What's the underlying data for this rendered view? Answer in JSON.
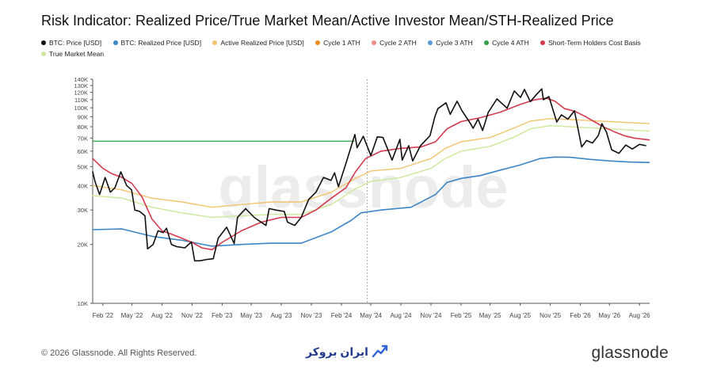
{
  "title": "Risk Indicator: Realized Price/True Market Mean/Active Investor Mean/STH-Realized Price",
  "legend": [
    {
      "label": "BTC: Price [USD]",
      "color": "#111111"
    },
    {
      "label": "BTC: Realized Price [USD]",
      "color": "#3d86c6"
    },
    {
      "label": "Active Realized Price [USD]",
      "color": "#f2c46d"
    },
    {
      "label": "Cycle 1 ATH",
      "color": "#f08c1a"
    },
    {
      "label": "Cycle 2 ATH",
      "color": "#f08c84"
    },
    {
      "label": "Cycle 3 ATH",
      "color": "#5b9bd5"
    },
    {
      "label": "Cycle 4 ATH",
      "color": "#2ea043"
    },
    {
      "label": "Short-Term Holders Cost Basis",
      "color": "#d23b4e"
    },
    {
      "label": "True Market Mean",
      "color": "#cde89b"
    }
  ],
  "watermark": "glassnode",
  "footer": {
    "copyright": "© 2026 Glassnode. All Rights Reserved.",
    "brand": "glassnode",
    "partner": "ایران بروکر"
  },
  "chart_data": {
    "type": "line",
    "y_scale": "log",
    "ylim": [
      10000,
      140000
    ],
    "yticks": [
      "10K",
      "20K",
      "30K",
      "40K",
      "50K",
      "60K",
      "70K",
      "80K",
      "90K",
      "100K",
      "110K",
      "120K",
      "130K",
      "140K"
    ],
    "ytick_values": [
      10000,
      20000,
      30000,
      40000,
      50000,
      60000,
      70000,
      80000,
      90000,
      100000,
      110000,
      120000,
      130000,
      140000
    ],
    "xlim": [
      "2022-01-01",
      "2026-09-01"
    ],
    "xticks": [
      "Feb '22",
      "May '22",
      "Aug '22",
      "Nov '22",
      "Feb '23",
      "May '23",
      "Aug '23",
      "Nov '23",
      "Feb '24",
      "May '24",
      "Aug '24",
      "Nov '24",
      "Feb '25",
      "May '25",
      "Aug '25",
      "Nov '25",
      "Feb '26",
      "May '26",
      "Aug '26"
    ],
    "xtick_dates": [
      "2022-02-01",
      "2022-05-01",
      "2022-08-01",
      "2022-11-01",
      "2023-02-01",
      "2023-05-01",
      "2023-08-01",
      "2023-11-01",
      "2024-02-01",
      "2024-05-01",
      "2024-08-01",
      "2024-11-01",
      "2025-02-01",
      "2025-05-01",
      "2025-08-01",
      "2025-11-01",
      "2026-02-01",
      "2026-05-01",
      "2026-08-01"
    ],
    "halving_marker": "2024-04-20",
    "cycle4_ath": {
      "value": 67500,
      "from": "2022-01-01",
      "to": "2024-03-12"
    },
    "series": [
      {
        "name": "BTC: Price [USD]",
        "color": "#111111",
        "width": 1.6,
        "points": [
          [
            "2022-01-01",
            47000
          ],
          [
            "2022-01-08",
            42000
          ],
          [
            "2022-01-22",
            36000
          ],
          [
            "2022-02-08",
            44000
          ],
          [
            "2022-02-24",
            37000
          ],
          [
            "2022-03-10",
            39000
          ],
          [
            "2022-03-28",
            47000
          ],
          [
            "2022-04-15",
            40000
          ],
          [
            "2022-04-30",
            38000
          ],
          [
            "2022-05-10",
            30000
          ],
          [
            "2022-05-25",
            29500
          ],
          [
            "2022-06-10",
            28000
          ],
          [
            "2022-06-18",
            19000
          ],
          [
            "2022-07-05",
            20000
          ],
          [
            "2022-07-20",
            23500
          ],
          [
            "2022-08-05",
            23000
          ],
          [
            "2022-08-15",
            24200
          ],
          [
            "2022-08-30",
            20000
          ],
          [
            "2022-09-15",
            19500
          ],
          [
            "2022-10-10",
            19200
          ],
          [
            "2022-10-30",
            20600
          ],
          [
            "2022-11-09",
            16500
          ],
          [
            "2022-11-25",
            16500
          ],
          [
            "2022-12-20",
            16800
          ],
          [
            "2023-01-05",
            16900
          ],
          [
            "2023-01-20",
            21500
          ],
          [
            "2023-02-15",
            24500
          ],
          [
            "2023-03-10",
            20200
          ],
          [
            "2023-03-20",
            27500
          ],
          [
            "2023-04-14",
            30500
          ],
          [
            "2023-05-10",
            27500
          ],
          [
            "2023-06-15",
            25000
          ],
          [
            "2023-06-25",
            30500
          ],
          [
            "2023-07-15",
            30000
          ],
          [
            "2023-08-10",
            29500
          ],
          [
            "2023-08-20",
            26000
          ],
          [
            "2023-09-11",
            25000
          ],
          [
            "2023-10-01",
            27500
          ],
          [
            "2023-10-24",
            34000
          ],
          [
            "2023-11-15",
            37000
          ],
          [
            "2023-12-08",
            44000
          ],
          [
            "2023-12-31",
            42500
          ],
          [
            "2024-01-11",
            46500
          ],
          [
            "2024-01-23",
            39500
          ],
          [
            "2024-02-15",
            52000
          ],
          [
            "2024-03-05",
            66000
          ],
          [
            "2024-03-13",
            73000
          ],
          [
            "2024-03-20",
            62500
          ],
          [
            "2024-04-08",
            71500
          ],
          [
            "2024-05-01",
            57000
          ],
          [
            "2024-05-21",
            71000
          ],
          [
            "2024-06-07",
            70500
          ],
          [
            "2024-07-05",
            54000
          ],
          [
            "2024-07-29",
            69000
          ],
          [
            "2024-08-05",
            54000
          ],
          [
            "2024-08-25",
            64000
          ],
          [
            "2024-09-06",
            53500
          ],
          [
            "2024-09-30",
            64000
          ],
          [
            "2024-10-29",
            72000
          ],
          [
            "2024-11-13",
            90000
          ],
          [
            "2024-11-22",
            99000
          ],
          [
            "2024-12-17",
            106000
          ],
          [
            "2024-12-30",
            92500
          ],
          [
            "2025-01-20",
            108000
          ],
          [
            "2025-02-03",
            97000
          ],
          [
            "2025-02-28",
            84000
          ],
          [
            "2025-03-10",
            78500
          ],
          [
            "2025-03-25",
            87500
          ],
          [
            "2025-04-08",
            76500
          ],
          [
            "2025-04-25",
            94500
          ],
          [
            "2025-05-22",
            111000
          ],
          [
            "2025-06-22",
            99500
          ],
          [
            "2025-07-14",
            122000
          ],
          [
            "2025-08-02",
            113000
          ],
          [
            "2025-08-14",
            124000
          ],
          [
            "2025-09-01",
            107500
          ],
          [
            "2025-09-20",
            117000
          ],
          [
            "2025-10-06",
            125000
          ],
          [
            "2025-10-11",
            110000
          ],
          [
            "2025-10-28",
            114000
          ],
          [
            "2025-11-21",
            84500
          ],
          [
            "2025-12-05",
            92000
          ],
          [
            "2025-12-25",
            87500
          ],
          [
            "2026-01-14",
            96500
          ],
          [
            "2026-02-05",
            63000
          ],
          [
            "2026-02-20",
            68000
          ],
          [
            "2026-03-10",
            66000
          ],
          [
            "2026-03-28",
            72000
          ],
          [
            "2026-04-08",
            83000
          ],
          [
            "2026-04-22",
            75000
          ],
          [
            "2026-05-08",
            61000
          ],
          [
            "2026-05-30",
            58500
          ],
          [
            "2026-06-20",
            64500
          ],
          [
            "2026-07-10",
            61500
          ],
          [
            "2026-08-01",
            65000
          ],
          [
            "2026-08-20",
            64000
          ]
        ]
      },
      {
        "name": "BTC: Realized Price [USD]",
        "color": "#3d86c6",
        "width": 1.6,
        "points": [
          [
            "2022-01-01",
            23800
          ],
          [
            "2022-04-01",
            24000
          ],
          [
            "2022-07-01",
            22000
          ],
          [
            "2022-10-01",
            21000
          ],
          [
            "2023-01-01",
            19600
          ],
          [
            "2023-04-01",
            20000
          ],
          [
            "2023-07-01",
            20300
          ],
          [
            "2023-10-01",
            20300
          ],
          [
            "2024-01-01",
            23200
          ],
          [
            "2024-03-01",
            26500
          ],
          [
            "2024-04-01",
            29000
          ],
          [
            "2024-06-01",
            30000
          ],
          [
            "2024-09-01",
            31000
          ],
          [
            "2024-11-15",
            36000
          ],
          [
            "2024-12-20",
            41500
          ],
          [
            "2025-02-01",
            43500
          ],
          [
            "2025-04-01",
            45000
          ],
          [
            "2025-06-01",
            48000
          ],
          [
            "2025-08-01",
            51000
          ],
          [
            "2025-10-01",
            55000
          ],
          [
            "2025-11-15",
            56000
          ],
          [
            "2026-01-01",
            55800
          ],
          [
            "2026-03-01",
            54500
          ],
          [
            "2026-05-01",
            53500
          ],
          [
            "2026-07-01",
            52800
          ],
          [
            "2026-08-31",
            52500
          ]
        ]
      },
      {
        "name": "Active Realized Price [USD]",
        "color": "#f2c46d",
        "width": 1.4,
        "points": [
          [
            "2022-01-01",
            40000
          ],
          [
            "2022-04-01",
            38000
          ],
          [
            "2022-07-01",
            34500
          ],
          [
            "2022-10-01",
            33000
          ],
          [
            "2023-01-01",
            31000
          ],
          [
            "2023-04-01",
            32000
          ],
          [
            "2023-07-01",
            33000
          ],
          [
            "2023-10-01",
            33000
          ],
          [
            "2024-01-01",
            37000
          ],
          [
            "2024-03-15",
            43500
          ],
          [
            "2024-05-01",
            47500
          ],
          [
            "2024-08-01",
            49000
          ],
          [
            "2024-11-01",
            55000
          ],
          [
            "2024-12-15",
            62000
          ],
          [
            "2025-02-01",
            67000
          ],
          [
            "2025-05-01",
            70500
          ],
          [
            "2025-07-15",
            79000
          ],
          [
            "2025-09-01",
            85500
          ],
          [
            "2025-11-01",
            88000
          ],
          [
            "2026-01-01",
            87000
          ],
          [
            "2026-03-01",
            86000
          ],
          [
            "2026-05-01",
            85000
          ],
          [
            "2026-07-01",
            84000
          ],
          [
            "2026-08-31",
            83000
          ]
        ]
      },
      {
        "name": "True Market Mean",
        "color": "#cde89b",
        "width": 1.4,
        "points": [
          [
            "2022-01-01",
            35500
          ],
          [
            "2022-04-01",
            34500
          ],
          [
            "2022-07-01",
            31000
          ],
          [
            "2022-10-01",
            29000
          ],
          [
            "2023-01-01",
            27500
          ],
          [
            "2023-04-01",
            28000
          ],
          [
            "2023-07-01",
            28500
          ],
          [
            "2023-10-01",
            28500
          ],
          [
            "2024-01-01",
            32000
          ],
          [
            "2024-03-15",
            38500
          ],
          [
            "2024-05-01",
            42000
          ],
          [
            "2024-08-01",
            44000
          ],
          [
            "2024-11-01",
            49000
          ],
          [
            "2024-12-15",
            55000
          ],
          [
            "2025-02-01",
            60000
          ],
          [
            "2025-05-01",
            63500
          ],
          [
            "2025-07-15",
            71000
          ],
          [
            "2025-09-01",
            78000
          ],
          [
            "2025-11-01",
            81000
          ],
          [
            "2026-01-01",
            80000
          ],
          [
            "2026-03-01",
            79000
          ],
          [
            "2026-05-01",
            78000
          ],
          [
            "2026-07-01",
            77000
          ],
          [
            "2026-08-31",
            76000
          ]
        ]
      },
      {
        "name": "Short-Term Holders Cost Basis",
        "color": "#d23b4e",
        "width": 1.6,
        "points": [
          [
            "2022-01-01",
            55000
          ],
          [
            "2022-02-01",
            49000
          ],
          [
            "2022-03-01",
            46000
          ],
          [
            "2022-04-01",
            44000
          ],
          [
            "2022-05-01",
            41000
          ],
          [
            "2022-06-01",
            35000
          ],
          [
            "2022-07-01",
            27000
          ],
          [
            "2022-08-01",
            23500
          ],
          [
            "2022-09-01",
            22500
          ],
          [
            "2022-10-01",
            21500
          ],
          [
            "2022-11-01",
            20500
          ],
          [
            "2022-12-01",
            19200
          ],
          [
            "2023-01-01",
            18800
          ],
          [
            "2023-02-01",
            20500
          ],
          [
            "2023-04-01",
            23500
          ],
          [
            "2023-06-01",
            26000
          ],
          [
            "2023-08-01",
            27500
          ],
          [
            "2023-10-01",
            27500
          ],
          [
            "2023-11-15",
            30000
          ],
          [
            "2024-01-01",
            34500
          ],
          [
            "2024-02-15",
            39000
          ],
          [
            "2024-03-15",
            47000
          ],
          [
            "2024-04-15",
            55000
          ],
          [
            "2024-06-01",
            60000
          ],
          [
            "2024-08-01",
            62000
          ],
          [
            "2024-10-01",
            63000
          ],
          [
            "2024-11-15",
            67000
          ],
          [
            "2024-12-20",
            78000
          ],
          [
            "2025-02-01",
            85000
          ],
          [
            "2025-04-01",
            89000
          ],
          [
            "2025-06-01",
            95000
          ],
          [
            "2025-08-01",
            104000
          ],
          [
            "2025-09-15",
            110000
          ],
          [
            "2025-10-20",
            112000
          ],
          [
            "2025-11-15",
            108000
          ],
          [
            "2025-12-15",
            99000
          ],
          [
            "2026-01-15",
            96000
          ],
          [
            "2026-02-15",
            90500
          ],
          [
            "2026-03-15",
            85000
          ],
          [
            "2026-04-15",
            79500
          ],
          [
            "2026-05-15",
            75500
          ],
          [
            "2026-06-15",
            72000
          ],
          [
            "2026-07-15",
            70000
          ],
          [
            "2026-08-31",
            68500
          ]
        ]
      }
    ]
  }
}
